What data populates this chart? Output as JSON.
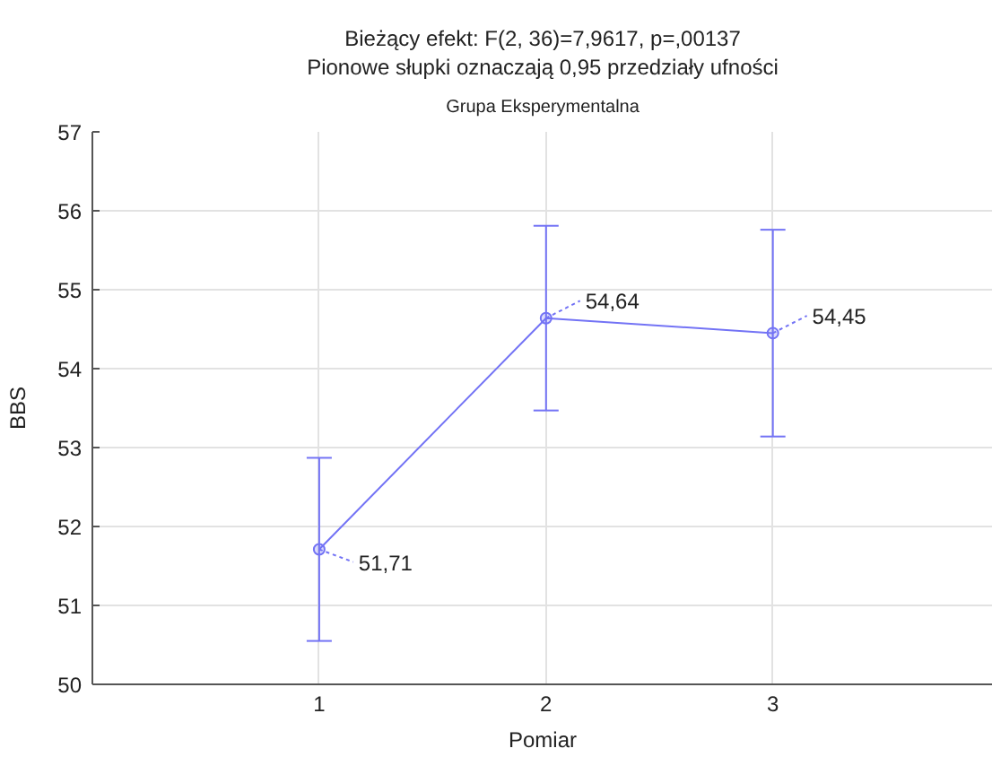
{
  "chart_data": {
    "type": "line",
    "title": "Bieżący efekt: F(2, 36)=7,9617, p=,00137",
    "subtitle": "Pionowe słupki oznaczają 0,95 przedziały ufności",
    "annotations": [
      "Grupa Eksperymentalna"
    ],
    "xlabel": "Pomiar",
    "ylabel": "BBS",
    "categories": [
      "1",
      "2",
      "3"
    ],
    "series": [
      {
        "color": "#7373f5",
        "values": [
          51.71,
          54.64,
          54.45
        ],
        "errors": [
          1.16,
          1.17,
          1.31
        ],
        "value_labels": [
          "51,71",
          "54,64",
          "54,45"
        ]
      }
    ],
    "ylim": [
      50,
      57
    ],
    "yticks": [
      50,
      51,
      52,
      53,
      54,
      55,
      56,
      57
    ],
    "grid": true,
    "marker": "circle",
    "line_style": "solid"
  }
}
